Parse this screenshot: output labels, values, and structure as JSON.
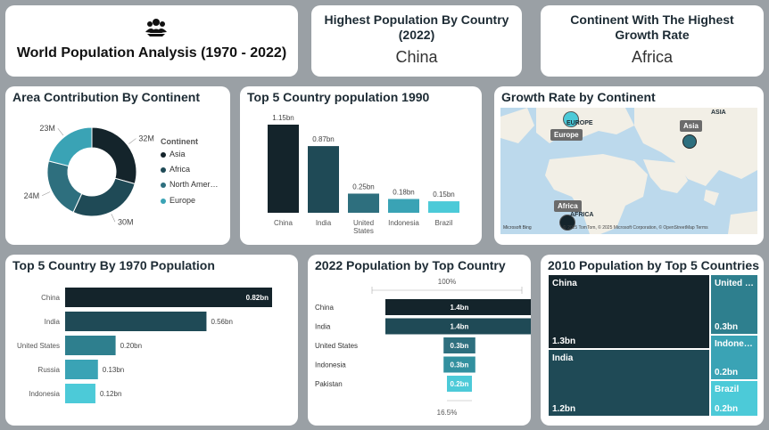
{
  "header": {
    "logo_icon": "people-group-icon",
    "title": "World Population Analysis (1970 - 2022)"
  },
  "kpi_highest": {
    "title": "Highest Population By Country (2022)",
    "value": "China"
  },
  "kpi_growth": {
    "title": "Continent With The Highest Growth Rate",
    "value": "Africa"
  },
  "area_chart": {
    "title": "Area Contribution By Continent",
    "legend_title": "Continent",
    "legend": [
      "Asia",
      "Africa",
      "North Amer…",
      "Europe"
    ],
    "labels": [
      "32M",
      "30M",
      "24M",
      "23M"
    ]
  },
  "map": {
    "title": "Growth Rate by Continent",
    "callouts": [
      "Asia",
      "Europe",
      "Africa"
    ],
    "region_labels": [
      "EUROPE",
      "ASIA",
      "AFRICA"
    ],
    "attribution": "© 2025 TomTom, © 2025 Microsoft Corporation, © OpenStreetMap  Terms",
    "provider": "Microsoft Bing"
  },
  "top5_1990": {
    "title": "Top 5 Country population 1990",
    "labels": [
      "1.15bn",
      "0.87bn",
      "0.25bn",
      "0.18bn",
      "0.15bn"
    ]
  },
  "top5_1970": {
    "title": "Top 5 Country By 1970 Population",
    "labels": [
      "0.82bn",
      "0.56bn",
      "0.20bn",
      "0.13bn",
      "0.12bn"
    ]
  },
  "pop2022": {
    "title": "2022 Population by Top Country",
    "top_pct": "100%",
    "bottom_pct": "16.5%",
    "labels": [
      "1.4bn",
      "1.4bn",
      "0.3bn",
      "0.3bn",
      "0.2bn"
    ]
  },
  "treemap2010": {
    "title": "2010 Population by Top 5 Countries",
    "cells": [
      {
        "name": "China",
        "value": "1.3bn"
      },
      {
        "name": "India",
        "value": "1.2bn"
      },
      {
        "name": "United …",
        "value": "0.3bn"
      },
      {
        "name": "Indone…",
        "value": "0.2bn"
      },
      {
        "name": "Brazil",
        "value": "0.2bn"
      }
    ]
  },
  "chart_data": [
    {
      "type": "pie",
      "title": "Area Contribution By Continent",
      "categories": [
        "Asia",
        "Africa",
        "North America",
        "Europe"
      ],
      "values": [
        32,
        30,
        24,
        23
      ],
      "unit": "M",
      "colors": [
        "#14242b",
        "#1f4a56",
        "#2e6f7e",
        "#3aa3b5"
      ],
      "legend_position": "right"
    },
    {
      "type": "bar",
      "title": "Top 5 Country population 1990",
      "categories": [
        "China",
        "India",
        "United States",
        "Indonesia",
        "Brazil"
      ],
      "values": [
        1.15,
        0.87,
        0.25,
        0.18,
        0.15
      ],
      "unit": "bn",
      "colors": [
        "#14242b",
        "#1f4a56",
        "#2e6f7e",
        "#3aa3b5",
        "#4ccad8"
      ]
    },
    {
      "type": "bar",
      "orientation": "horizontal",
      "title": "Top 5 Country By 1970 Population",
      "categories": [
        "China",
        "India",
        "United States",
        "Russia",
        "Indonesia"
      ],
      "values": [
        0.82,
        0.56,
        0.2,
        0.13,
        0.12
      ],
      "unit": "bn",
      "colors": [
        "#14242b",
        "#1f4a56",
        "#2e7f8e",
        "#3aa3b5",
        "#4ccad8"
      ]
    },
    {
      "type": "bar",
      "subtype": "funnel",
      "title": "2022 Population by Top Country",
      "categories": [
        "China",
        "India",
        "United States",
        "Indonesia",
        "Pakistan"
      ],
      "values": [
        1.4,
        1.4,
        0.3,
        0.3,
        0.2
      ],
      "unit": "bn",
      "colors": [
        "#14242b",
        "#1f4a56",
        "#2e6f7e",
        "#32909f",
        "#4ccad8"
      ]
    },
    {
      "type": "heatmap",
      "subtype": "treemap",
      "title": "2010 Population by Top 5 Countries",
      "categories": [
        "China",
        "India",
        "United States",
        "Indonesia",
        "Brazil"
      ],
      "values": [
        1.3,
        1.2,
        0.3,
        0.2,
        0.2
      ],
      "unit": "bn",
      "colors": [
        "#14242b",
        "#1f4a56",
        "#2e7f8e",
        "#3aa3b5",
        "#4ccad8"
      ]
    }
  ]
}
